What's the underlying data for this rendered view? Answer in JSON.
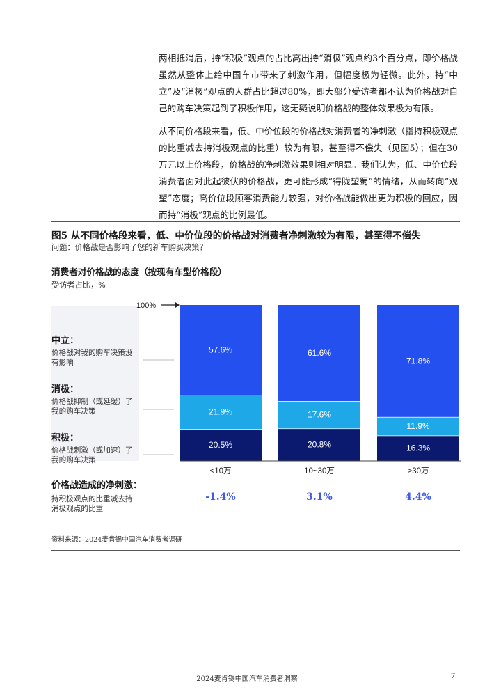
{
  "body": {
    "paragraph1": "两相抵消后，持“积极”观点的占比高出持“消极”观点约3个百分点，即价格战虽然从整体上给中国车市带来了刺激作用，但幅度极为轻微。此外，持“中立”及“消极”观点的人群占比超过80%，即大部分受访者都不认为价格战对自己的购车决策起到了积极作用，这无疑说明价格战的整体效果极为有限。",
    "paragraph2": "从不同价格段来看，低、中价位段的价格战对消费者的净刺激（指持积极观点的比重减去持消极观点的比重）较为有限，甚至得不偿失（见图5）；但在30万元以上价格段，价格战的净刺激效果则相对明显。我们认为，低、中价位段消费者面对此起彼伏的价格战，更可能形成“得陇望蜀”的情绪，从而转向“观望”态度；高价位段顾客消费能力较强，对价格战能做出更为积极的回应，因而持“消极”观点的比例最低。"
  },
  "figure": {
    "title": "图5 从不同价格段来看，低、中价位段的价格战对消费者净刺激较为有限，甚至得不偿失",
    "question": "问题：价格战是否影响了您的新车购买决策？",
    "chart_title": "消费者对价格战的态度（按现有车型价格段）",
    "unit": "受访者占比，%",
    "groups": [
      {
        "title": "中立：",
        "desc": "价格战对我的购车决策没有影响"
      },
      {
        "title": "消极：",
        "desc": "价格战抑制（或延缓）了我的购车决策"
      },
      {
        "title": "积极：",
        "desc": "价格战刺激（或加速）了我的购车决策"
      }
    ],
    "net": {
      "title": "价格战造成的净刺激：",
      "desc": "持积极观点的比重减去持消极观点的比重",
      "values": [
        "-1.4%",
        "3.1%",
        "4.4%"
      ]
    },
    "source": "资料来源：2024麦肯锡中国汽车消费者调研"
  },
  "chart_data": {
    "type": "bar",
    "stacked": true,
    "categories": [
      "<10万",
      "10~30万",
      ">30万"
    ],
    "series": [
      {
        "name": "积极",
        "values": [
          20.5,
          20.8,
          16.3
        ],
        "labels": [
          "20.5%",
          "20.8%",
          "16.3%"
        ],
        "color": "#0b1a6e"
      },
      {
        "name": "消极",
        "values": [
          21.9,
          17.6,
          11.9
        ],
        "labels": [
          "21.9%",
          "17.6%",
          "11.9%"
        ],
        "color": "#1fa8e8"
      },
      {
        "name": "中立",
        "values": [
          57.6,
          61.6,
          71.8
        ],
        "labels": [
          "57.6%",
          "61.6%",
          "71.8%"
        ],
        "color": "#2450f0"
      }
    ],
    "top_label": "100%",
    "ylim": [
      0,
      100
    ],
    "net_color": "#3f5be8"
  },
  "footer": {
    "text": "2024麦肯锡中国汽车消费者洞察",
    "page": "7"
  }
}
